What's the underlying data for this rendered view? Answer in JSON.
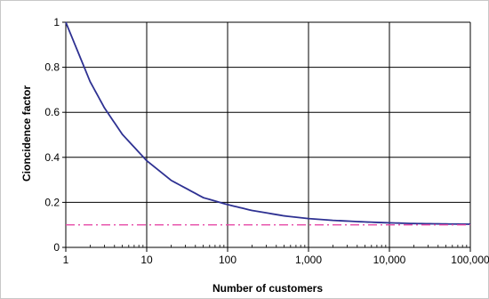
{
  "chart_data": {
    "type": "line",
    "title": "",
    "xlabel": "Number of customers",
    "ylabel": "Cioncidence factor",
    "x_scale": "log",
    "xlim": [
      1,
      100000
    ],
    "ylim": [
      0,
      1
    ],
    "x_ticks": [
      1,
      10,
      100,
      1000,
      10000,
      100000
    ],
    "x_tick_labels": [
      "1",
      "10",
      "100",
      "1,000",
      "10,000",
      "100,000"
    ],
    "y_ticks": [
      0,
      0.2,
      0.4,
      0.6,
      0.8,
      1
    ],
    "y_tick_labels": [
      "0",
      "0.2",
      "0.4",
      "0.6",
      "0.8",
      "1"
    ],
    "grid": true,
    "legend": "none",
    "series": [
      {
        "style": "solid",
        "color": "#2e3192",
        "x": [
          1,
          2,
          3,
          5,
          10,
          20,
          50,
          100,
          200,
          500,
          1000,
          2000,
          5000,
          10000,
          20000,
          50000,
          100000
        ],
        "y": [
          1.0,
          0.736,
          0.62,
          0.502,
          0.385,
          0.298,
          0.221,
          0.19,
          0.164,
          0.14,
          0.128,
          0.12,
          0.113,
          0.109,
          0.106,
          0.104,
          0.103
        ]
      },
      {
        "style": "dash-dot",
        "color": "#e64aa6",
        "x": [
          1,
          100000
        ],
        "y": [
          0.1,
          0.1
        ]
      }
    ]
  },
  "colors": {
    "gridline": "#000000",
    "background": "#ffffff",
    "border": "#c8c8c8"
  }
}
